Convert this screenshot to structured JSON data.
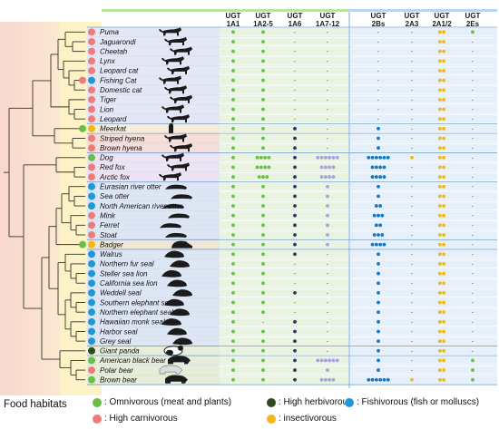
{
  "colors": {
    "omnivorous": "#6abf45",
    "high_carnivorous": "#ef7b7b",
    "high_herbivorous": "#2f4a1e",
    "fishivorous": "#1f97d9",
    "insectivorous": "#f5b61a",
    "ugt1_dot_green": "#6abf45",
    "ugt1_dot_lilac": "#a7a2dd",
    "ugt1_dot_navy": "#263a6a",
    "ugt2_dot_blue": "#1378c0",
    "ugt2_dot_yellow": "#f5b61a",
    "ugt2_dot_light": "#9fbde8"
  },
  "columns": [
    {
      "label1": "UGT",
      "label2": "1A1"
    },
    {
      "label1": "UGT",
      "label2": "1A2-5"
    },
    {
      "label1": "UGT",
      "label2": "1A6"
    },
    {
      "label1": "UGT",
      "label2": "1A7-12"
    },
    {
      "label1": "UGT",
      "label2": "2Bs"
    },
    {
      "label1": "UGT",
      "label2": "2A3"
    },
    {
      "label1": "UGT",
      "label2": "2A1/2"
    },
    {
      "label1": "UGT",
      "label2": "2Es"
    }
  ],
  "species": [
    {
      "name": "Puma",
      "habit": [
        "high_carnivorous"
      ],
      "cells": [
        "1g",
        "1g",
        "-",
        "-",
        "-",
        "-",
        "2y",
        "1g"
      ],
      "icon": "felid-icon"
    },
    {
      "name": "Jaguarondi",
      "habit": [
        "high_carnivorous"
      ],
      "cells": [
        "1g",
        "1g",
        "-",
        "-",
        "-",
        "-",
        "2y",
        "-"
      ],
      "icon": "felid-icon"
    },
    {
      "name": "Cheetah",
      "habit": [
        "high_carnivorous"
      ],
      "cells": [
        "1g",
        "1g",
        "-",
        "-",
        "-",
        "-",
        "2y",
        "-"
      ],
      "icon": "felid-icon"
    },
    {
      "name": "Lynx",
      "habit": [
        "high_carnivorous"
      ],
      "cells": [
        "1g",
        "1g",
        "-",
        "-",
        "-",
        "-",
        "2y",
        "-"
      ],
      "icon": "felid-icon"
    },
    {
      "name": "Leopard cat",
      "habit": [
        "high_carnivorous"
      ],
      "cells": [
        "1g",
        "1g",
        "-",
        "-",
        "-",
        "-",
        "2y",
        "-"
      ],
      "icon": "felid-icon"
    },
    {
      "name": "Fishing Cat",
      "habit": [
        "high_carnivorous",
        "fishivorous"
      ],
      "cells": [
        "1g",
        "1g",
        "-",
        "-",
        "-",
        "-",
        "2y",
        "-"
      ],
      "icon": "felid-icon"
    },
    {
      "name": "Domestic cat",
      "habit": [
        "high_carnivorous"
      ],
      "cells": [
        "1g",
        "1g",
        "-",
        "-",
        "-",
        "-",
        "2y",
        "-"
      ],
      "icon": "felid-icon"
    },
    {
      "name": "Tiger",
      "habit": [
        "high_carnivorous"
      ],
      "cells": [
        "1g",
        "1g",
        "-",
        "-",
        "-",
        "-",
        "2y",
        "-"
      ],
      "icon": "felid-icon"
    },
    {
      "name": "Lion",
      "habit": [
        "high_carnivorous"
      ],
      "cells": [
        "1g",
        "1g",
        "-",
        "-",
        "-",
        "-",
        "2y",
        "-"
      ],
      "icon": "felid-icon"
    },
    {
      "name": "Leopard",
      "habit": [
        "high_carnivorous"
      ],
      "cells": [
        "1g",
        "1g",
        "-",
        "-",
        "-",
        "-",
        "2y",
        "-"
      ],
      "icon": "felid-icon"
    },
    {
      "name": "Meerkat",
      "habit": [
        "omnivorous",
        "insectivorous"
      ],
      "cells": [
        "1g",
        "1g",
        "1n",
        "-",
        "1b",
        "-",
        "2y",
        "-"
      ],
      "icon": "meerkat-icon"
    },
    {
      "name": "Striped hyena",
      "habit": [
        "high_carnivorous"
      ],
      "cells": [
        "1g",
        "1g",
        "1n",
        "-",
        "1b",
        "-",
        "2y",
        "-"
      ],
      "icon": "hyena-icon"
    },
    {
      "name": "Brown hyena",
      "habit": [
        "high_carnivorous"
      ],
      "cells": [
        "1g",
        "1g",
        "1n",
        "-",
        "1b",
        "-",
        "2y",
        "-"
      ],
      "icon": "hyena-icon"
    },
    {
      "name": "Dog",
      "habit": [
        "omnivorous"
      ],
      "cells": [
        "1g",
        "4g",
        "1n",
        "6l",
        "6b",
        "1y",
        "2y",
        "-"
      ],
      "icon": "canid-icon"
    },
    {
      "name": "Red fox",
      "habit": [
        "high_carnivorous"
      ],
      "cells": [
        "1g",
        "4g",
        "1n",
        "4l",
        "4b",
        "-",
        "2y",
        "-"
      ],
      "icon": "canid-icon"
    },
    {
      "name": "Arctic fox",
      "habit": [
        "high_carnivorous"
      ],
      "cells": [
        "1g",
        "3g",
        "1n",
        "4l",
        "4b",
        "-",
        "2y",
        "-"
      ],
      "icon": "canid-icon"
    },
    {
      "name": "Eurasian river otter",
      "habit": [
        "fishivorous"
      ],
      "cells": [
        "1g",
        "1g",
        "1n",
        "1l",
        "1b",
        "-",
        "2y",
        "-"
      ],
      "icon": "mustelid-icon"
    },
    {
      "name": "Sea otter",
      "habit": [
        "fishivorous"
      ],
      "cells": [
        "1g",
        "1g",
        "1n",
        "1l",
        "1b",
        "-",
        "2y",
        "-"
      ],
      "icon": "mustelid-icon"
    },
    {
      "name": "North American river otter",
      "habit": [
        "fishivorous"
      ],
      "cells": [
        "1g",
        "1g",
        "1n",
        "1l",
        "2b",
        "-",
        "2y",
        "-"
      ],
      "icon": "mustelid-icon"
    },
    {
      "name": "Mink",
      "habit": [
        "high_carnivorous"
      ],
      "cells": [
        "1g",
        "1g",
        "1n",
        "1l",
        "3b",
        "-",
        "2y",
        "-"
      ],
      "icon": "mustelid-icon"
    },
    {
      "name": "Ferret",
      "habit": [
        "high_carnivorous"
      ],
      "cells": [
        "1g",
        "1g",
        "1n",
        "1l",
        "2b",
        "-",
        "2y",
        "-"
      ],
      "icon": "mustelid-icon"
    },
    {
      "name": "Stoat",
      "habit": [
        "high_carnivorous"
      ],
      "cells": [
        "1g",
        "1g",
        "1n",
        "1l",
        "3b",
        "-",
        "2y",
        "-"
      ],
      "icon": "mustelid-icon"
    },
    {
      "name": "Badger",
      "habit": [
        "omnivorous",
        "insectivorous"
      ],
      "cells": [
        "1g",
        "1g",
        "1n",
        "1l",
        "4b",
        "-",
        "2y",
        "-"
      ],
      "icon": "badger-icon"
    },
    {
      "name": "Walrus",
      "habit": [
        "fishivorous"
      ],
      "cells": [
        "1g",
        "1g",
        "1n",
        "-",
        "1b",
        "-",
        "2y",
        "-"
      ],
      "icon": "pinniped-icon"
    },
    {
      "name": "Northern fur seal",
      "habit": [
        "fishivorous"
      ],
      "cells": [
        "1g",
        "1g",
        "-",
        "-",
        "1b",
        "-",
        "2y",
        "-"
      ],
      "icon": "pinniped-icon"
    },
    {
      "name": "Steller sea lion",
      "habit": [
        "fishivorous"
      ],
      "cells": [
        "1g",
        "1g",
        "-",
        "-",
        "1b",
        "-",
        "2y",
        "-"
      ],
      "icon": "pinniped-icon"
    },
    {
      "name": "California sea lion",
      "habit": [
        "fishivorous"
      ],
      "cells": [
        "1g",
        "1g",
        "-",
        "-",
        "1b",
        "-",
        "2y",
        "-"
      ],
      "icon": "pinniped-icon"
    },
    {
      "name": "Weddell seal",
      "habit": [
        "fishivorous"
      ],
      "cells": [
        "1g",
        "1g",
        "1n",
        "-",
        "1b",
        "-",
        "2y",
        "-"
      ],
      "icon": "pinniped-icon"
    },
    {
      "name": "Southern elephant seal",
      "habit": [
        "fishivorous"
      ],
      "cells": [
        "1g",
        "1g",
        "-",
        "-",
        "1b",
        "-",
        "2y",
        "-"
      ],
      "icon": "pinniped-icon"
    },
    {
      "name": "Northern elephant seal",
      "habit": [
        "fishivorous"
      ],
      "cells": [
        "1g",
        "1g",
        "-",
        "-",
        "1b",
        "-",
        "2y",
        "-"
      ],
      "icon": "pinniped-icon"
    },
    {
      "name": "Hawaiian monk seal",
      "habit": [
        "fishivorous"
      ],
      "cells": [
        "1g",
        "-",
        "1n",
        "-",
        "1b",
        "-",
        "2y",
        "-"
      ],
      "icon": "pinniped-icon"
    },
    {
      "name": "Harbor seal",
      "habit": [
        "fishivorous"
      ],
      "cells": [
        "1g",
        "1g",
        "1n",
        "-",
        "1b",
        "-",
        "2y",
        "-"
      ],
      "icon": "pinniped-icon"
    },
    {
      "name": "Grey seal",
      "habit": [
        "fishivorous"
      ],
      "cells": [
        "1g",
        "1g",
        "1n",
        "-",
        "1b",
        "-",
        "2y",
        "-"
      ],
      "icon": "pinniped-icon"
    },
    {
      "name": "Giant panda",
      "habit": [
        "high_herbivorous"
      ],
      "cells": [
        "1g",
        "1g",
        "1n",
        "-",
        "1b",
        "-",
        "2y",
        "-"
      ],
      "icon": "panda-icon"
    },
    {
      "name": "American black bear",
      "habit": [
        "omnivorous"
      ],
      "cells": [
        "1g",
        "1g",
        "1n",
        "6l",
        "1b",
        "-",
        "2y",
        "1g"
      ],
      "icon": "bear-icon"
    },
    {
      "name": "Polar bear",
      "habit": [
        "high_carnivorous"
      ],
      "cells": [
        "1g",
        "1g",
        "1n",
        "1l",
        "1b",
        "-",
        "2y",
        "1g"
      ],
      "icon": "polar-bear-icon"
    },
    {
      "name": "Brown bear",
      "habit": [
        "omnivorous"
      ],
      "cells": [
        "1g",
        "1g",
        "1n",
        "4l",
        "6b",
        "1y",
        "2y",
        "1g"
      ],
      "icon": "bear-icon"
    }
  ],
  "legend": {
    "title": "Food habitats",
    "omnivorous": ": Omnivorous (meat and plants)",
    "high_herbivorous": ": High herbivorous",
    "fishivorous": ": Fishivorous (fish or molluscs)",
    "high_carnivorous": ": High carnivorous",
    "insectivorous": ": insectivorous"
  }
}
